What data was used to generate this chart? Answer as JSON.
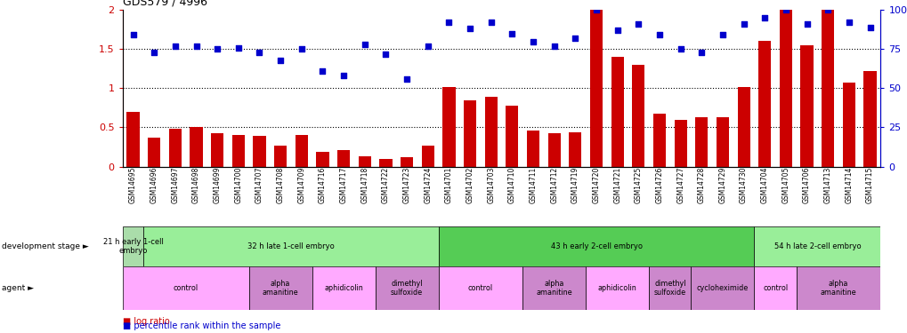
{
  "title": "GDS579 / 4996",
  "samples": [
    "GSM14695",
    "GSM14696",
    "GSM14697",
    "GSM14698",
    "GSM14699",
    "GSM14700",
    "GSM14707",
    "GSM14708",
    "GSM14709",
    "GSM14716",
    "GSM14717",
    "GSM14718",
    "GSM14722",
    "GSM14723",
    "GSM14724",
    "GSM14701",
    "GSM14702",
    "GSM14703",
    "GSM14710",
    "GSM14711",
    "GSM14712",
    "GSM14719",
    "GSM14720",
    "GSM14721",
    "GSM14725",
    "GSM14726",
    "GSM14727",
    "GSM14728",
    "GSM14729",
    "GSM14730",
    "GSM14704",
    "GSM14705",
    "GSM14706",
    "GSM14713",
    "GSM14714",
    "GSM14715"
  ],
  "log_ratio": [
    0.7,
    0.37,
    0.48,
    0.5,
    0.43,
    0.4,
    0.39,
    0.27,
    0.4,
    0.19,
    0.21,
    0.13,
    0.1,
    0.12,
    0.27,
    1.01,
    0.85,
    0.89,
    0.78,
    0.46,
    0.42,
    0.44,
    2.0,
    1.4,
    1.3,
    0.68,
    0.6,
    0.63,
    0.63,
    1.01,
    1.61,
    2.0,
    1.55,
    2.0,
    1.07,
    1.22
  ],
  "percentile": [
    84,
    73,
    77,
    77,
    75,
    76,
    73,
    68,
    75,
    61,
    58,
    78,
    72,
    56,
    77,
    92,
    88,
    92,
    85,
    80,
    77,
    82,
    100,
    87,
    91,
    84,
    75,
    73,
    84,
    91,
    95,
    100,
    91,
    100,
    92,
    89
  ],
  "bar_color": "#cc0000",
  "dot_color": "#0000cc",
  "hlines": [
    0.5,
    1.0,
    1.5
  ],
  "ytick_labels_left": [
    "0",
    "0.5",
    "1",
    "1.5",
    "2"
  ],
  "ytick_labels_right": [
    "0",
    "25",
    "50",
    "75",
    "100%"
  ],
  "stage_groups": [
    {
      "label": "21 h early 1-cell\nembryo",
      "start": 0,
      "end": 0,
      "color": "#aaddaa"
    },
    {
      "label": "32 h late 1-cell embryo",
      "start": 1,
      "end": 14,
      "color": "#99ee99"
    },
    {
      "label": "43 h early 2-cell embryo",
      "start": 15,
      "end": 29,
      "color": "#55cc55"
    },
    {
      "label": "54 h late 2-cell embryo",
      "start": 30,
      "end": 35,
      "color": "#99ee99"
    }
  ],
  "agent_groups": [
    {
      "label": "control",
      "start": 0,
      "end": 5,
      "color": "#ffaaff"
    },
    {
      "label": "alpha\namanitine",
      "start": 6,
      "end": 8,
      "color": "#cc88cc"
    },
    {
      "label": "aphidicolin",
      "start": 9,
      "end": 11,
      "color": "#ffaaff"
    },
    {
      "label": "dimethyl\nsulfoxide",
      "start": 12,
      "end": 14,
      "color": "#cc88cc"
    },
    {
      "label": "control",
      "start": 15,
      "end": 18,
      "color": "#ffaaff"
    },
    {
      "label": "alpha\namanitine",
      "start": 19,
      "end": 21,
      "color": "#cc88cc"
    },
    {
      "label": "aphidicolin",
      "start": 22,
      "end": 24,
      "color": "#ffaaff"
    },
    {
      "label": "dimethyl\nsulfoxide",
      "start": 25,
      "end": 26,
      "color": "#cc88cc"
    },
    {
      "label": "cycloheximide",
      "start": 27,
      "end": 29,
      "color": "#cc88cc"
    },
    {
      "label": "control",
      "start": 30,
      "end": 31,
      "color": "#ffaaff"
    },
    {
      "label": "alpha\namanitine",
      "start": 32,
      "end": 35,
      "color": "#cc88cc"
    }
  ]
}
